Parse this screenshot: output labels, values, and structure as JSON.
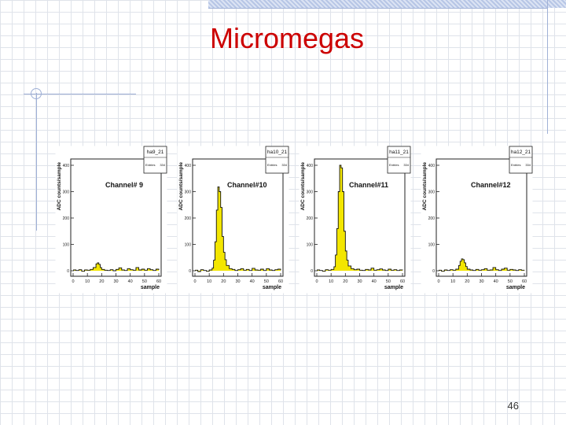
{
  "slide": {
    "title": "Micromegas",
    "page_number": "46"
  },
  "colors": {
    "title": "#cc0000",
    "fill": "#f3e600",
    "grid": "#dfe3ea",
    "accent_lines": "#9fb0d6"
  },
  "chart_data": [
    {
      "type": "histogram",
      "hist_name": "ha9_21",
      "stats_label": "Entries",
      "stats_value": "334",
      "label": "Channel# 9",
      "xlabel": "sample",
      "ylabel": "ADC counts/sample",
      "xlim": [
        0,
        60
      ],
      "ylim": [
        0,
        400
      ],
      "x_ticks": [
        0,
        10,
        20,
        30,
        40,
        50,
        60
      ],
      "y_ticks": [
        0,
        100,
        200,
        300,
        400
      ],
      "x": [
        0,
        2,
        4,
        6,
        8,
        10,
        12,
        14,
        16,
        17,
        18,
        19,
        20,
        22,
        24,
        26,
        28,
        30,
        32,
        34,
        36,
        38,
        40,
        42,
        44,
        46,
        48,
        50,
        52,
        54,
        56,
        58,
        60
      ],
      "values": [
        3,
        1,
        4,
        -2,
        3,
        2,
        5,
        12,
        26,
        30,
        24,
        12,
        5,
        2,
        1,
        4,
        0,
        5,
        11,
        3,
        1,
        8,
        4,
        2,
        12,
        3,
        6,
        2,
        8,
        4,
        1,
        6,
        3
      ]
    },
    {
      "type": "histogram",
      "hist_name": "ha10_21",
      "stats_label": "Entries",
      "stats_value": "334",
      "label": "Channel#10",
      "xlabel": "sample",
      "ylabel": "ADC counts/sample",
      "xlim": [
        0,
        60
      ],
      "ylim": [
        0,
        400
      ],
      "x_ticks": [
        0,
        10,
        20,
        30,
        40,
        50,
        60
      ],
      "y_ticks": [
        0,
        100,
        200,
        300,
        400
      ],
      "x": [
        0,
        2,
        4,
        6,
        8,
        10,
        12,
        13,
        14,
        15,
        16,
        17,
        18,
        19,
        20,
        21,
        22,
        24,
        26,
        28,
        30,
        32,
        34,
        36,
        38,
        40,
        42,
        44,
        46,
        48,
        50,
        52,
        54,
        56,
        58,
        60
      ],
      "values": [
        2,
        -3,
        4,
        1,
        -2,
        3,
        10,
        40,
        110,
        230,
        318,
        300,
        240,
        130,
        70,
        42,
        20,
        8,
        5,
        1,
        4,
        8,
        2,
        5,
        1,
        9,
        3,
        2,
        6,
        1,
        8,
        3,
        1,
        4,
        6,
        2
      ]
    },
    {
      "type": "histogram",
      "hist_name": "ha11_21",
      "stats_label": "Entries",
      "stats_value": "334",
      "label": "Channel#11",
      "xlabel": "sample",
      "ylabel": "ADC counts/sample",
      "xlim": [
        0,
        60
      ],
      "ylim": [
        0,
        400
      ],
      "x_ticks": [
        0,
        10,
        20,
        30,
        40,
        50,
        60
      ],
      "y_ticks": [
        0,
        100,
        200,
        300,
        400
      ],
      "x": [
        0,
        2,
        4,
        6,
        8,
        10,
        12,
        13,
        14,
        15,
        16,
        17,
        18,
        19,
        20,
        21,
        22,
        24,
        26,
        28,
        30,
        32,
        34,
        36,
        38,
        40,
        42,
        44,
        46,
        48,
        50,
        52,
        54,
        56,
        58,
        60
      ],
      "values": [
        3,
        1,
        -2,
        4,
        2,
        5,
        15,
        60,
        160,
        300,
        400,
        390,
        300,
        150,
        75,
        40,
        18,
        8,
        4,
        6,
        2,
        1,
        5,
        3,
        10,
        2,
        4,
        7,
        3,
        1,
        6,
        2,
        4,
        1,
        3,
        2
      ]
    },
    {
      "type": "histogram",
      "hist_name": "ha12_21",
      "stats_label": "Entries",
      "stats_value": "334",
      "label": "Channel#12",
      "xlabel": "sample",
      "ylabel": "ADC counts/sample",
      "xlim": [
        0,
        60
      ],
      "ylim": [
        0,
        400
      ],
      "x_ticks": [
        0,
        10,
        20,
        30,
        40,
        50,
        60
      ],
      "y_ticks": [
        0,
        100,
        200,
        300,
        400
      ],
      "x": [
        0,
        2,
        4,
        6,
        8,
        10,
        12,
        14,
        15,
        16,
        17,
        18,
        19,
        20,
        22,
        24,
        26,
        28,
        30,
        32,
        34,
        36,
        38,
        40,
        42,
        44,
        46,
        48,
        50,
        52,
        54,
        56,
        58,
        60
      ],
      "values": [
        2,
        -2,
        3,
        1,
        4,
        2,
        6,
        20,
        36,
        45,
        42,
        30,
        16,
        6,
        3,
        1,
        5,
        2,
        4,
        8,
        2,
        3,
        12,
        4,
        1,
        6,
        10,
        2,
        5,
        3,
        1,
        4,
        2,
        1
      ]
    }
  ]
}
